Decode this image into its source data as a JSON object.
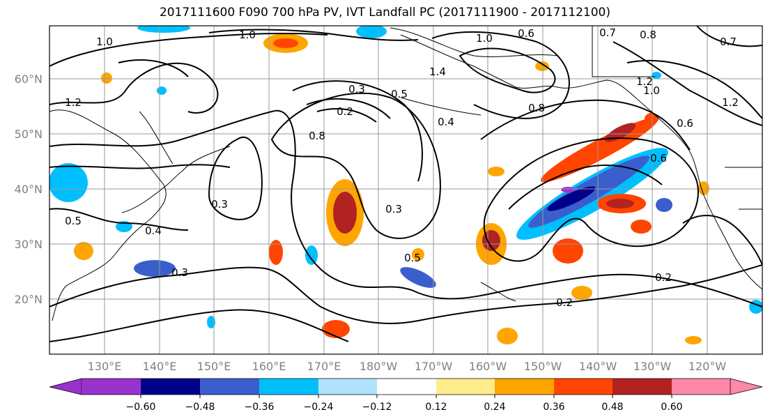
{
  "title": "2017111600 F090 700 hPa PV, IVT Landfall PC (2017111900 - 2017112100)",
  "map": {
    "lat_labels": [
      "60°N",
      "50°N",
      "40°N",
      "30°N",
      "20°N"
    ],
    "lon_labels": [
      "130°E",
      "140°E",
      "150°E",
      "160°E",
      "170°E",
      "180°W",
      "170°W",
      "160°W",
      "150°W",
      "140°W",
      "130°W",
      "120°W"
    ],
    "contour_labels": [
      "1.0",
      "1.0",
      "0.6",
      "0.7",
      "0.8",
      "0.7",
      "1.0",
      "1.2",
      "1.4",
      "0.3",
      "0.5",
      "0.2",
      "0.4",
      "0.8",
      "1.2",
      "1.0",
      "1.2",
      "0.8",
      "0.6",
      "0.6",
      "0.3",
      "0.3",
      "0.4",
      "0.5",
      "0.3",
      "0.5",
      "0.2",
      "0.2"
    ]
  },
  "colorbar": {
    "ticks": [
      "−0.60",
      "−0.48",
      "−0.36",
      "−0.24",
      "−0.12",
      "0.12",
      "0.24",
      "0.36",
      "0.48",
      "0.60"
    ],
    "colors": [
      "#9932cc",
      "#00008b",
      "#3a5fcd",
      "#00bfff",
      "#b0e2ff",
      "#ffffff",
      "#ffec8b",
      "#ffa500",
      "#ff4500",
      "#b22222",
      "#ff88aa"
    ]
  }
}
